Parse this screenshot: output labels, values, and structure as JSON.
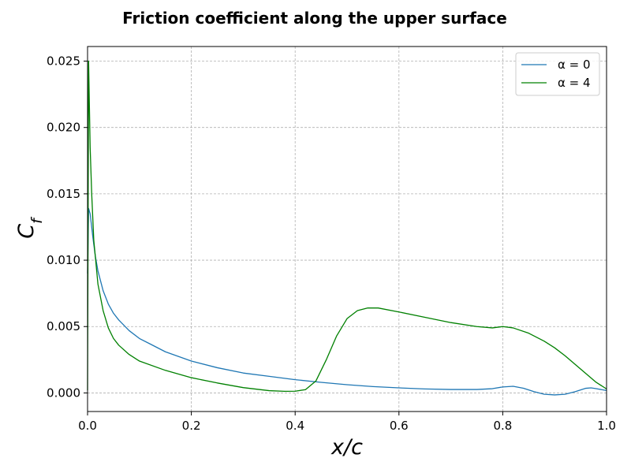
{
  "chart_data": {
    "type": "line",
    "title": "Friction coefficient along the upper surface",
    "xlabel": "x/c",
    "ylabel": "C_f",
    "xlim": [
      0.0,
      1.0
    ],
    "ylim": [
      -0.0014,
      0.0261
    ],
    "x_ticks": [
      0.0,
      0.2,
      0.4,
      0.6,
      0.8,
      1.0
    ],
    "x_tick_labels": [
      "0.0",
      "0.2",
      "0.4",
      "0.6",
      "0.8",
      "1.0"
    ],
    "y_ticks": [
      0.0,
      0.005,
      0.01,
      0.015,
      0.02,
      0.025
    ],
    "y_tick_labels": [
      "0.000",
      "0.005",
      "0.010",
      "0.015",
      "0.020",
      "0.025"
    ],
    "grid": true,
    "legend_position": "top-right",
    "series": [
      {
        "name": "α = 0",
        "color": "#1f77b4",
        "x": [
          0.0,
          0.002,
          0.005,
          0.01,
          0.015,
          0.02,
          0.03,
          0.04,
          0.05,
          0.06,
          0.08,
          0.1,
          0.12,
          0.15,
          0.2,
          0.25,
          0.3,
          0.35,
          0.4,
          0.45,
          0.5,
          0.55,
          0.6,
          0.65,
          0.7,
          0.75,
          0.78,
          0.8,
          0.82,
          0.84,
          0.86,
          0.88,
          0.9,
          0.92,
          0.94,
          0.96,
          0.97,
          0.98,
          1.0
        ],
        "y": [
          0.009,
          0.0139,
          0.0135,
          0.0118,
          0.0103,
          0.0092,
          0.0077,
          0.0067,
          0.006,
          0.0055,
          0.0047,
          0.0041,
          0.0037,
          0.0031,
          0.0024,
          0.0019,
          0.0015,
          0.00125,
          0.001,
          0.0008,
          0.00062,
          0.00048,
          0.00038,
          0.0003,
          0.00026,
          0.00026,
          0.00032,
          0.00045,
          0.0005,
          0.00035,
          0.0001,
          -0.0001,
          -0.00015,
          -0.0001,
          0.0001,
          0.00035,
          0.00038,
          0.00032,
          0.00018
        ]
      },
      {
        "name": "α = 4",
        "color": "#008000",
        "x": [
          0.0,
          0.002,
          0.005,
          0.008,
          0.012,
          0.02,
          0.03,
          0.04,
          0.05,
          0.06,
          0.08,
          0.1,
          0.15,
          0.2,
          0.25,
          0.3,
          0.35,
          0.38,
          0.4,
          0.42,
          0.44,
          0.46,
          0.48,
          0.5,
          0.52,
          0.54,
          0.56,
          0.6,
          0.65,
          0.7,
          0.75,
          0.78,
          0.8,
          0.82,
          0.85,
          0.88,
          0.9,
          0.92,
          0.95,
          0.98,
          1.0
        ],
        "y": [
          0.0002,
          0.025,
          0.0185,
          0.015,
          0.0115,
          0.0082,
          0.0062,
          0.0049,
          0.0041,
          0.0036,
          0.0029,
          0.0024,
          0.0017,
          0.00115,
          0.00075,
          0.0004,
          0.00017,
          0.00012,
          0.00013,
          0.00025,
          0.0009,
          0.0025,
          0.0043,
          0.0056,
          0.0062,
          0.0064,
          0.0064,
          0.0061,
          0.0057,
          0.0053,
          0.005,
          0.0049,
          0.005,
          0.0049,
          0.0045,
          0.0039,
          0.0034,
          0.0028,
          0.0018,
          0.0008,
          0.0003
        ]
      }
    ]
  }
}
